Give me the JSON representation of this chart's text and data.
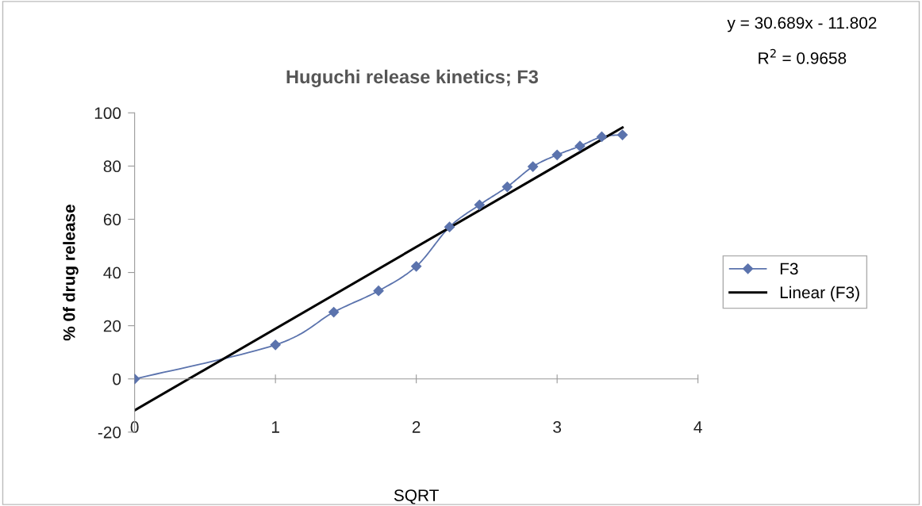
{
  "chart_data": {
    "type": "line",
    "title": "Huguchi release kinetics; F3",
    "xlabel": "SQRT",
    "ylabel": "% 0f drug release",
    "series": [
      {
        "name": "F3",
        "color": "#5b73ad",
        "marker": "diamond",
        "x": [
          0,
          1,
          1.414,
          1.732,
          2,
          2.236,
          2.449,
          2.646,
          2.828,
          3,
          3.162,
          3.317,
          3.464
        ],
        "values": [
          0,
          12.8,
          25.1,
          33.1,
          42.3,
          57.1,
          65.4,
          72.2,
          79.8,
          84.2,
          87.5,
          91.0,
          91.7
        ]
      },
      {
        "name": "Linear (F3)",
        "color": "#000000",
        "marker": "none",
        "x": [
          0,
          3.464
        ],
        "values": [
          -11.8,
          94.5
        ]
      }
    ],
    "xlim": [
      0,
      4
    ],
    "xticks": [
      0,
      1,
      2,
      3,
      4
    ],
    "ylim": [
      -20,
      100
    ],
    "yticks": [
      -20,
      0,
      20,
      40,
      60,
      80,
      100
    ],
    "grid": false,
    "legend": "right",
    "annotations": [
      "y = 30.689x - 11.802",
      "R$^{2}$ = 0.9658"
    ]
  }
}
